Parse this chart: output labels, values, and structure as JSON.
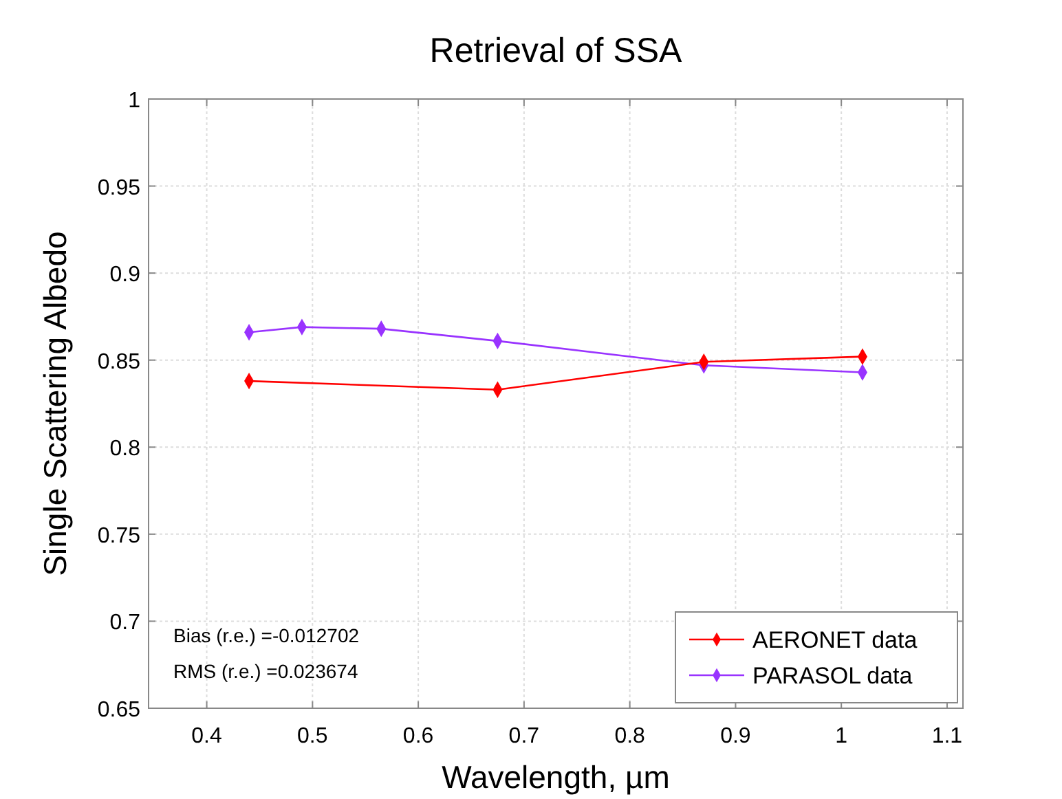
{
  "chart_data": {
    "type": "line",
    "title": "Retrieval of SSA",
    "xlabel": "Wavelength, µm",
    "ylabel": "Single Scattering Albedo",
    "xlim": [
      0.345,
      1.115
    ],
    "xticks": [
      0.4,
      0.5,
      0.6,
      0.7,
      0.8,
      0.9,
      1,
      1.1
    ],
    "ylim": [
      0.65,
      1
    ],
    "yticks": [
      0.65,
      0.7,
      0.75,
      0.8,
      0.85,
      0.9,
      0.95,
      1
    ],
    "grid": true,
    "legend": "bottom right",
    "marker": "diamond",
    "line_style": "solid",
    "annotations": [
      "Bias (r.e.) =-0.012702",
      "RMS (r.e.) =0.023674"
    ],
    "series": [
      {
        "name": "AERONET data",
        "color": "#ff0000",
        "x": [
          0.44,
          0.675,
          0.87,
          1.02
        ],
        "values": [
          0.838,
          0.833,
          0.849,
          0.852
        ]
      },
      {
        "name": "PARASOL data",
        "color": "#9933ff",
        "x": [
          0.44,
          0.49,
          0.565,
          0.675,
          0.87,
          1.02
        ],
        "values": [
          0.866,
          0.869,
          0.868,
          0.861,
          0.847,
          0.843
        ]
      }
    ]
  }
}
